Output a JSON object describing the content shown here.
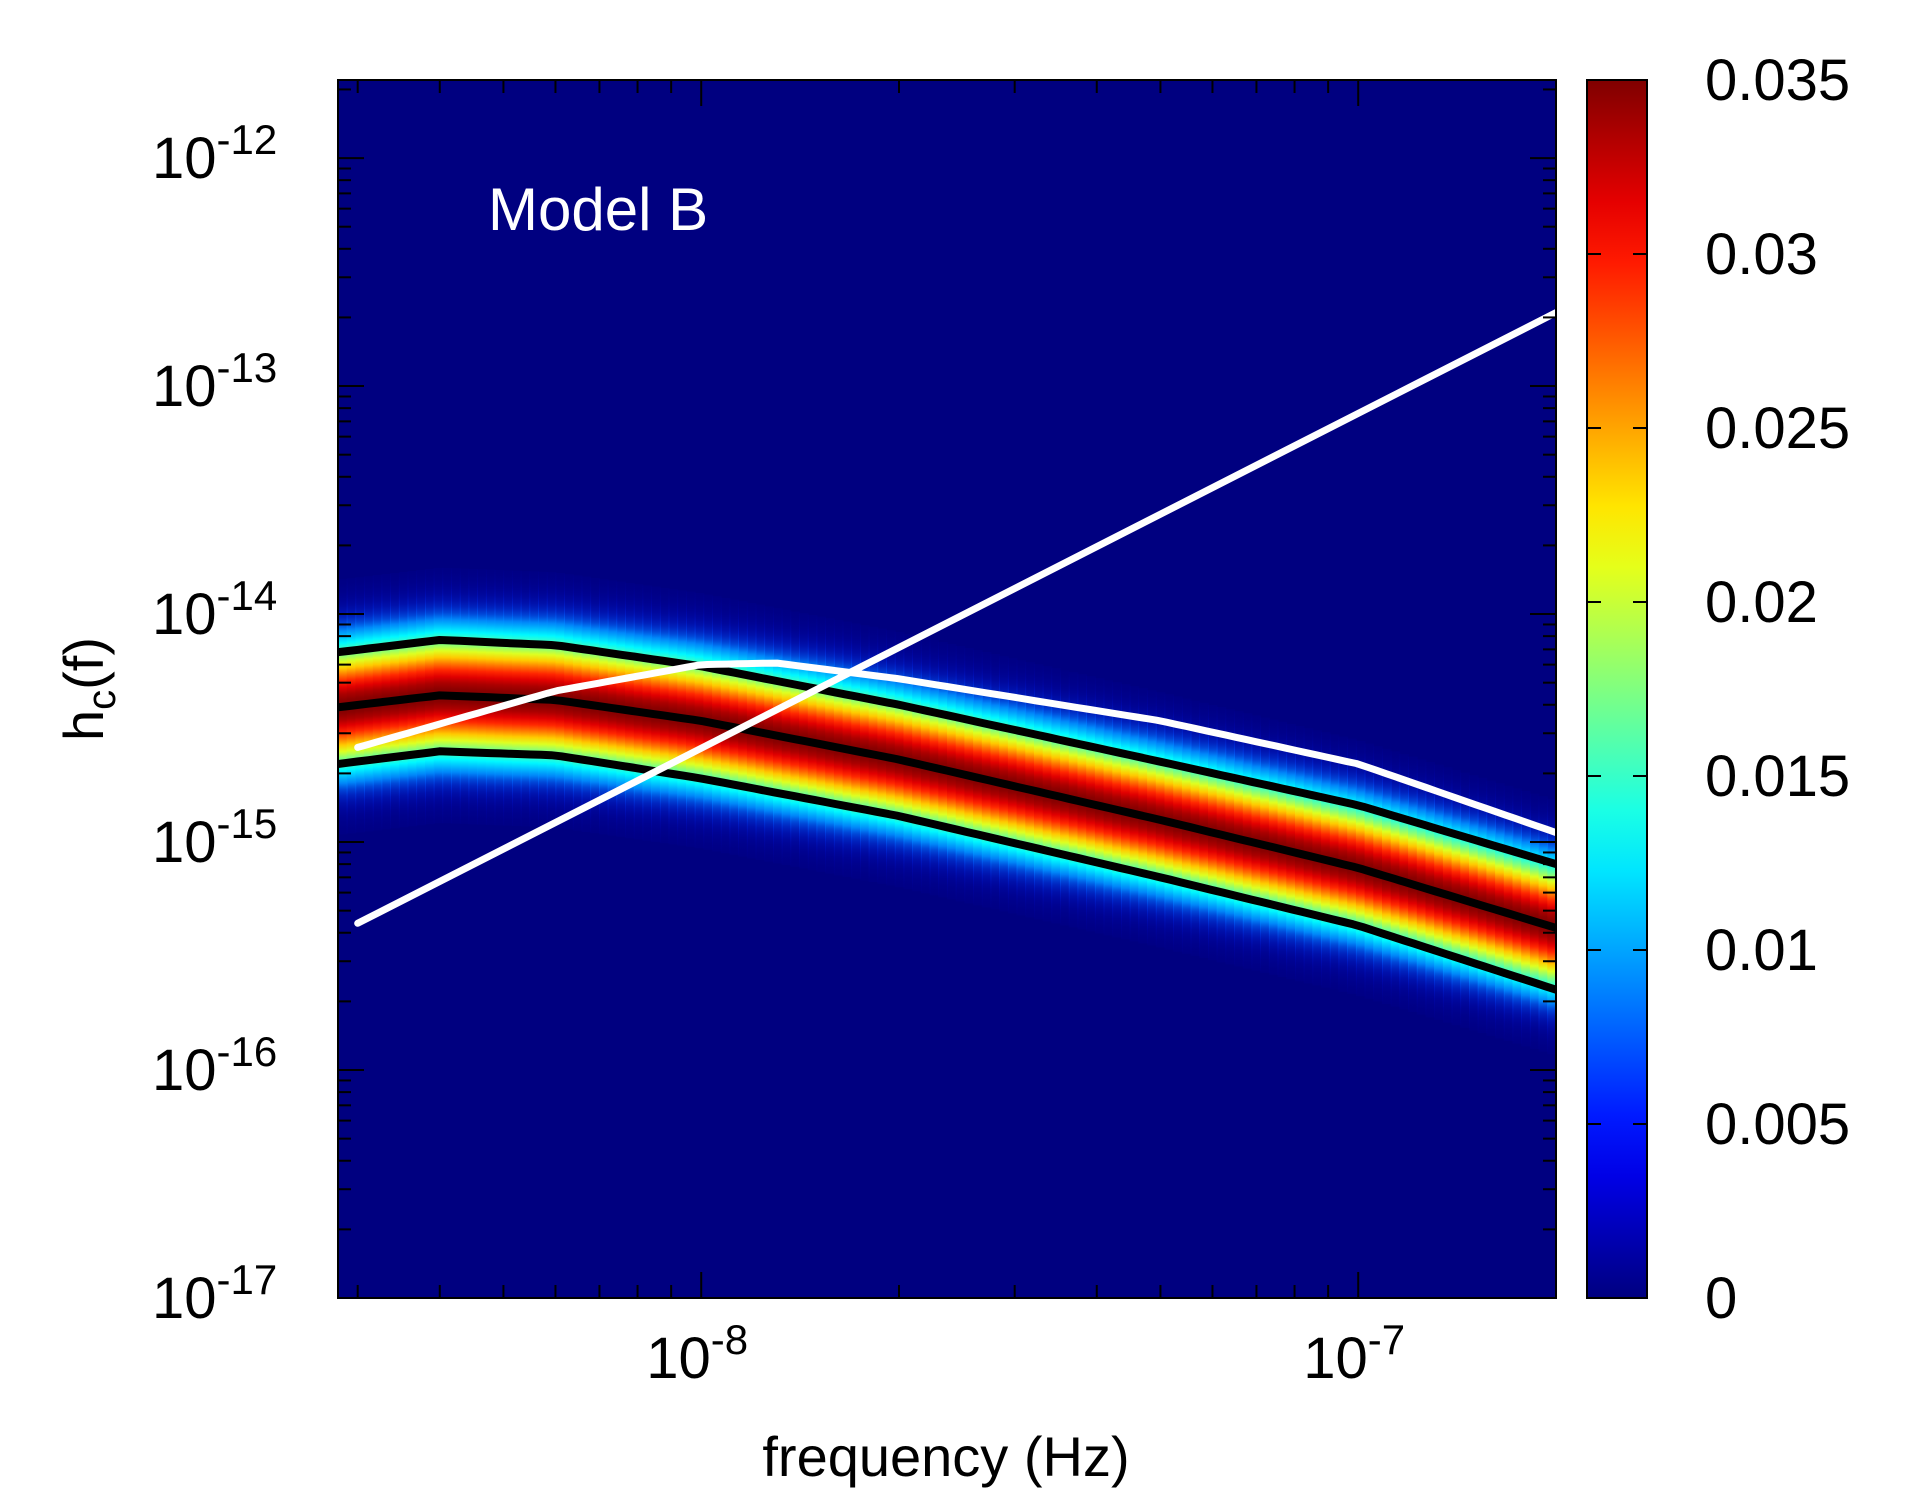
{
  "chart_data": {
    "type": "heatmap",
    "title": "",
    "annotation": "Model B",
    "xlabel": "frequency (Hz)",
    "ylabel_main": "h",
    "ylabel_sub": "c",
    "ylabel_tail": "(f)",
    "x_scale": "log",
    "y_scale": "log",
    "xlim": [
      2.8e-09,
      2e-07
    ],
    "ylim": [
      1e-17,
      2.2e-12
    ],
    "x_ticks": [
      {
        "base": "10",
        "exp": "-8",
        "value": 1e-08
      },
      {
        "base": "10",
        "exp": "-7",
        "value": 1e-07
      }
    ],
    "y_ticks": [
      {
        "base": "10",
        "exp": "-12",
        "value": 1e-12
      },
      {
        "base": "10",
        "exp": "-13",
        "value": 1e-13
      },
      {
        "base": "10",
        "exp": "-14",
        "value": 1e-14
      },
      {
        "base": "10",
        "exp": "-15",
        "value": 1e-15
      },
      {
        "base": "10",
        "exp": "-16",
        "value": 1e-16
      },
      {
        "base": "10",
        "exp": "-17",
        "value": 1e-17
      }
    ],
    "colorbar": {
      "range": [
        0,
        0.035
      ],
      "ticks": [
        "0",
        "0.005",
        "0.01",
        "0.015",
        "0.02",
        "0.025",
        "0.03",
        "0.035"
      ],
      "tick_values": [
        0,
        0.005,
        0.01,
        0.015,
        0.02,
        0.025,
        0.03,
        0.035
      ],
      "colormap": "jet"
    },
    "background_color": "#000080",
    "series": [
      {
        "name": "median",
        "color": "#000000",
        "points": [
          [
            2.8e-09,
            3.9e-15
          ],
          [
            4e-09,
            4.4e-15
          ],
          [
            6e-09,
            4.2e-15
          ],
          [
            1e-08,
            3.4e-15
          ],
          [
            2e-08,
            2.3e-15
          ],
          [
            5e-08,
            1.25e-15
          ],
          [
            1e-07,
            7.7e-16
          ],
          [
            2e-07,
            4.2e-16
          ]
        ]
      },
      {
        "name": "upper",
        "color": "#000000",
        "points": [
          [
            2.8e-09,
            6.8e-15
          ],
          [
            4e-09,
            7.7e-15
          ],
          [
            6e-09,
            7.3e-15
          ],
          [
            1e-08,
            5.9e-15
          ],
          [
            2e-08,
            4e-15
          ],
          [
            5e-08,
            2.25e-15
          ],
          [
            1e-07,
            1.45e-15
          ],
          [
            2e-07,
            8e-16
          ]
        ]
      },
      {
        "name": "lower",
        "color": "#000000",
        "points": [
          [
            2.8e-09,
            2.2e-15
          ],
          [
            4e-09,
            2.5e-15
          ],
          [
            6e-09,
            2.4e-15
          ],
          [
            1e-08,
            1.9e-15
          ],
          [
            2e-08,
            1.3e-15
          ],
          [
            5e-08,
            7e-16
          ],
          [
            1e-07,
            4.3e-16
          ],
          [
            2e-07,
            2.25e-16
          ]
        ]
      },
      {
        "name": "sensitivity-curve",
        "color": "#ffffff",
        "points": [
          [
            3e-09,
            2.6e-15
          ],
          [
            6e-09,
            4.6e-15
          ],
          [
            1e-08,
            6e-15
          ],
          [
            1.3e-08,
            6.1e-15
          ],
          [
            2e-08,
            5.2e-15
          ],
          [
            5e-08,
            3.4e-15
          ],
          [
            1e-07,
            2.2e-15
          ],
          [
            2e-07,
            1.1e-15
          ]
        ]
      },
      {
        "name": "rising-line",
        "color": "#ffffff",
        "points": [
          [
            3e-09,
            4.4e-16
          ],
          [
            2e-07,
            2.1e-13
          ]
        ]
      }
    ]
  }
}
